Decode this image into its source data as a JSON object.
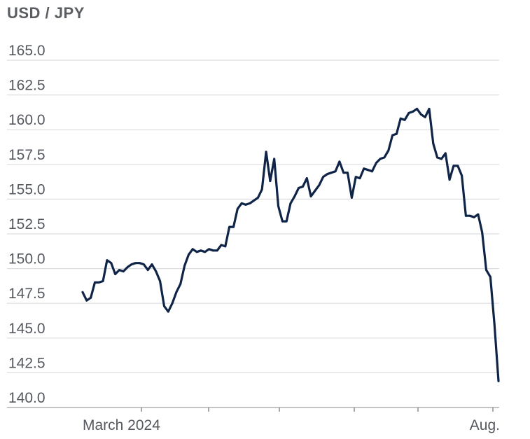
{
  "chart_data": {
    "type": "line",
    "title": "USD / JPY",
    "xlabel": "",
    "ylabel": "",
    "ylim": [
      140,
      165
    ],
    "y_ticks": [
      "165.0",
      "162.5",
      "160.0",
      "157.5",
      "155.0",
      "152.5",
      "150.0",
      "147.5",
      "145.0",
      "142.5",
      "140.0"
    ],
    "y_tick_values": [
      165,
      162.5,
      160,
      157.5,
      155,
      152.5,
      150,
      147.5,
      145,
      142.5,
      140
    ],
    "x_tick_labels": [
      "March 2024",
      "Aug."
    ],
    "grid": true,
    "legend": "none",
    "line_color": "#0f2447",
    "series": [
      {
        "values": [
          148.3,
          147.7,
          147.9,
          149.0,
          149.0,
          149.1,
          150.6,
          150.4,
          149.6,
          149.9,
          149.8,
          150.1,
          150.3,
          150.4,
          150.4,
          150.3,
          149.9,
          150.3,
          149.8,
          149.1,
          147.3,
          146.9,
          147.5,
          148.3,
          148.9,
          150.2,
          151.0,
          151.4,
          151.2,
          151.3,
          151.2,
          151.4,
          151.3,
          151.3,
          151.7,
          151.6,
          153.0,
          153.0,
          154.3,
          154.7,
          154.6,
          154.7,
          154.9,
          155.1,
          155.7,
          158.4,
          156.3,
          157.9,
          154.5,
          153.4,
          153.4,
          154.7,
          155.2,
          155.8,
          155.9,
          156.5,
          155.2,
          155.6,
          156.0,
          156.6,
          156.8,
          156.9,
          157.0,
          157.7,
          156.9,
          156.9,
          155.1,
          156.6,
          156.5,
          157.2,
          157.1,
          157.0,
          157.6,
          157.9,
          158.0,
          158.5,
          159.6,
          159.7,
          160.8,
          160.7,
          161.2,
          161.3,
          161.5,
          161.1,
          160.9,
          161.5,
          159.0,
          158.0,
          157.9,
          158.3,
          156.4,
          157.4,
          157.4,
          156.7,
          153.8,
          153.8,
          153.7,
          153.9,
          152.6,
          149.9,
          149.4,
          146.0,
          141.9
        ]
      }
    ]
  }
}
